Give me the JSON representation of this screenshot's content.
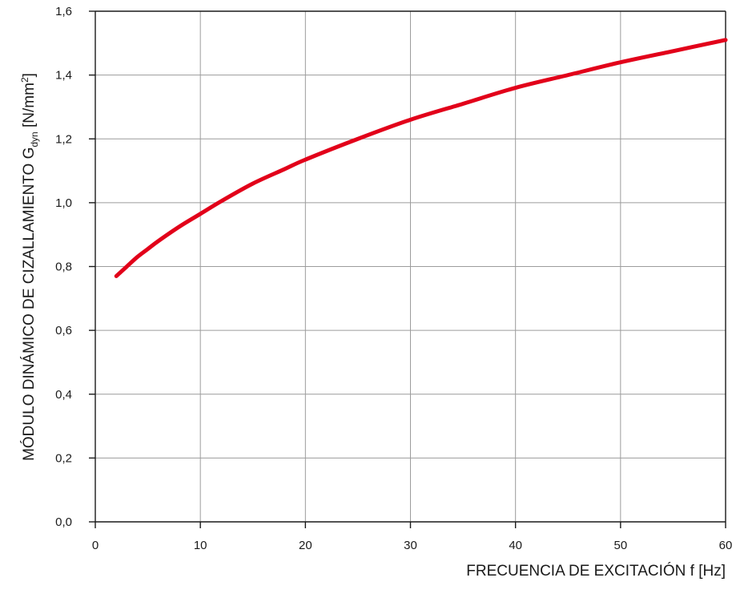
{
  "chart_data": {
    "type": "line",
    "xlabel": "FRECUENCIA DE EXCITACIÓN f [Hz]",
    "ylabel": {
      "main": "MÓDULO DINÁMICO DE CIZALLAMIENTO G",
      "subscript": "dyn",
      "unit_open": " [N/mm",
      "superscript": "2",
      "unit_close": "]"
    },
    "xlim": [
      0,
      60
    ],
    "ylim": [
      0,
      1.6
    ],
    "x_ticks": [
      0,
      10,
      20,
      30,
      40,
      50,
      60
    ],
    "x_tick_labels": [
      "0",
      "10",
      "20",
      "30",
      "40",
      "50",
      "60"
    ],
    "y_ticks": [
      0,
      0.2,
      0.4,
      0.6,
      0.8,
      1.0,
      1.2,
      1.4,
      1.6
    ],
    "y_tick_labels": [
      "0,0",
      "0,2",
      "0,4",
      "0,6",
      "0,8",
      "1,0",
      "1,2",
      "1,4",
      "1,6"
    ],
    "grid": true,
    "series": [
      {
        "color": "#e2001a",
        "x": [
          2,
          3,
          4,
          5,
          6,
          8,
          10,
          12,
          15,
          18,
          20,
          25,
          30,
          35,
          40,
          45,
          50,
          55,
          60
        ],
        "y": [
          0.77,
          0.8,
          0.83,
          0.855,
          0.88,
          0.925,
          0.965,
          1.005,
          1.06,
          1.105,
          1.135,
          1.2,
          1.26,
          1.31,
          1.36,
          1.4,
          1.44,
          1.475,
          1.51
        ]
      }
    ]
  }
}
